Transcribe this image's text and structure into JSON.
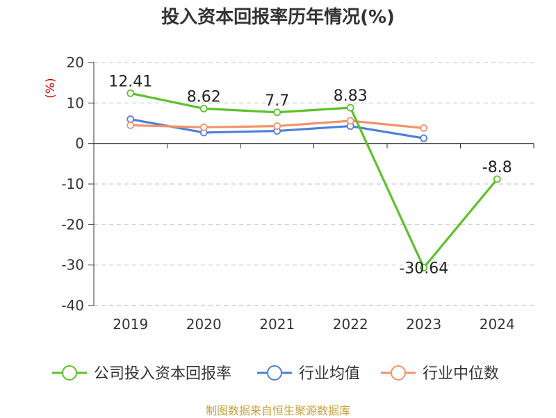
{
  "title": "投入资本回报率历年情况(%)",
  "source": "制图数据来自恒生聚源数据库",
  "chart_data": {
    "type": "line",
    "ylabel": "(%)",
    "ylim": [
      -40,
      20
    ],
    "yticks": [
      20,
      10,
      0,
      -10,
      -20,
      -30,
      -40
    ],
    "categories": [
      "2019",
      "2020",
      "2021",
      "2022",
      "2023",
      "2024"
    ],
    "grid": true,
    "legend_position": "bottom",
    "series": [
      {
        "name": "公司投入资本回报率",
        "color": "#5cc12a",
        "values": [
          12.41,
          8.62,
          7.7,
          8.83,
          -30.64,
          -8.8
        ],
        "labels": [
          "12.41",
          "8.62",
          "7.7",
          "8.83",
          "-30.64",
          "-8.8"
        ]
      },
      {
        "name": "行业均值",
        "color": "#4e7fd8",
        "values": [
          6.0,
          2.7,
          3.1,
          4.3,
          1.3,
          null
        ]
      },
      {
        "name": "行业中位数",
        "color": "#f2936a",
        "values": [
          4.5,
          4.0,
          4.3,
          5.6,
          3.8,
          null
        ]
      }
    ]
  }
}
